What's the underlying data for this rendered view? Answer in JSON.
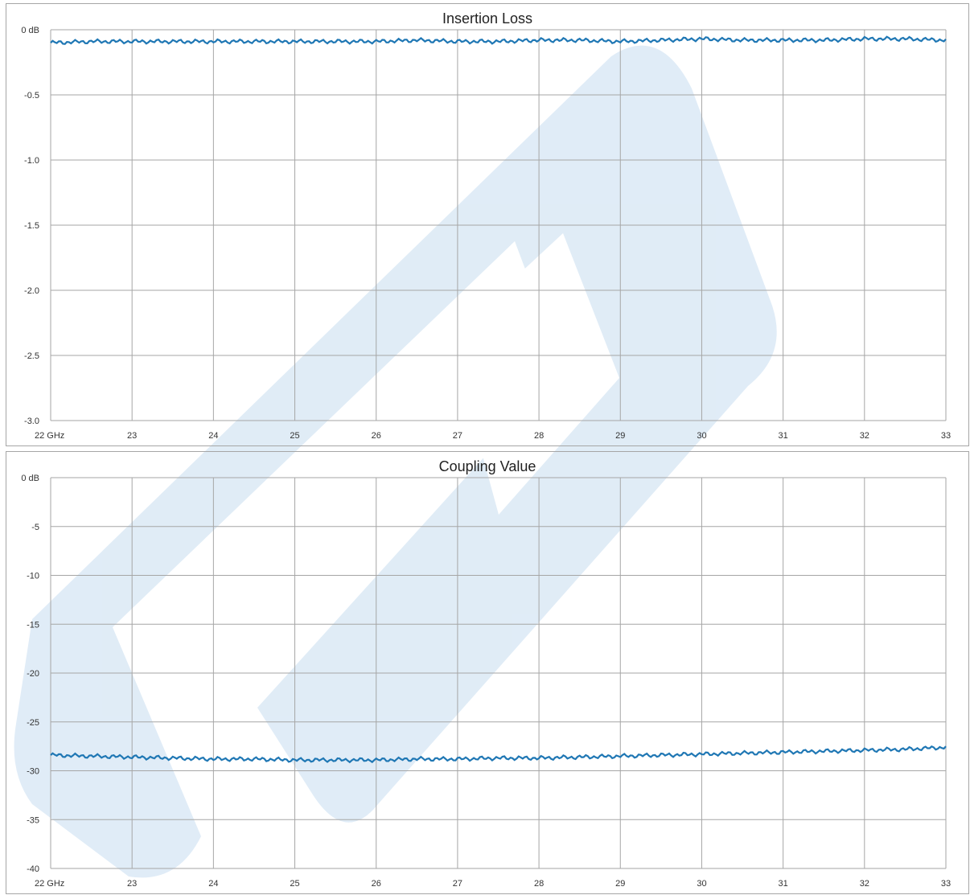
{
  "chart_data": [
    {
      "type": "line",
      "title": "Insertion Loss",
      "xlabel": "",
      "ylabel": "",
      "xlim": [
        22,
        33
      ],
      "ylim": [
        -3.0,
        0
      ],
      "x_tick_labels": [
        "22 GHz",
        "23",
        "24",
        "25",
        "26",
        "27",
        "28",
        "29",
        "30",
        "31",
        "32",
        "33"
      ],
      "y_tick_labels": [
        "0 dB",
        "-0.5",
        "-1.0",
        "-1.5",
        "-2.0",
        "-2.5",
        "-3.0"
      ],
      "grid": true,
      "series": [
        {
          "color": "#1f77b4",
          "x": [
            22.0,
            22.5,
            23.0,
            23.5,
            24.0,
            24.5,
            25.0,
            25.5,
            26.0,
            26.5,
            27.0,
            27.5,
            28.0,
            28.5,
            29.0,
            29.5,
            30.0,
            30.5,
            31.0,
            31.5,
            32.0,
            32.5,
            33.0
          ],
          "y": [
            -0.1,
            -0.09,
            -0.09,
            -0.09,
            -0.09,
            -0.09,
            -0.09,
            -0.09,
            -0.09,
            -0.08,
            -0.09,
            -0.09,
            -0.08,
            -0.08,
            -0.09,
            -0.08,
            -0.07,
            -0.08,
            -0.08,
            -0.08,
            -0.07,
            -0.07,
            -0.08
          ]
        }
      ]
    },
    {
      "type": "line",
      "title": "Coupling Value",
      "xlabel": "",
      "ylabel": "",
      "xlim": [
        22,
        33
      ],
      "ylim": [
        -40,
        0
      ],
      "x_tick_labels": [
        "22 GHz",
        "23",
        "24",
        "25",
        "26",
        "27",
        "28",
        "29",
        "30",
        "31",
        "32",
        "33"
      ],
      "y_tick_labels": [
        "0 dB",
        "-5",
        "-10",
        "-15",
        "-20",
        "-25",
        "-30",
        "-35",
        "-40"
      ],
      "grid": true,
      "series": [
        {
          "color": "#1f77b4",
          "x": [
            22.0,
            22.5,
            23.0,
            23.5,
            24.0,
            24.5,
            25.0,
            25.5,
            26.0,
            26.5,
            27.0,
            27.5,
            28.0,
            28.5,
            29.0,
            29.5,
            30.0,
            30.5,
            31.0,
            31.5,
            32.0,
            32.5,
            33.0
          ],
          "y": [
            -28.4,
            -28.5,
            -28.6,
            -28.7,
            -28.8,
            -28.8,
            -28.9,
            -28.9,
            -28.9,
            -28.8,
            -28.8,
            -28.7,
            -28.7,
            -28.6,
            -28.5,
            -28.4,
            -28.3,
            -28.2,
            -28.1,
            -28.0,
            -27.9,
            -27.8,
            -27.6
          ]
        }
      ]
    }
  ]
}
